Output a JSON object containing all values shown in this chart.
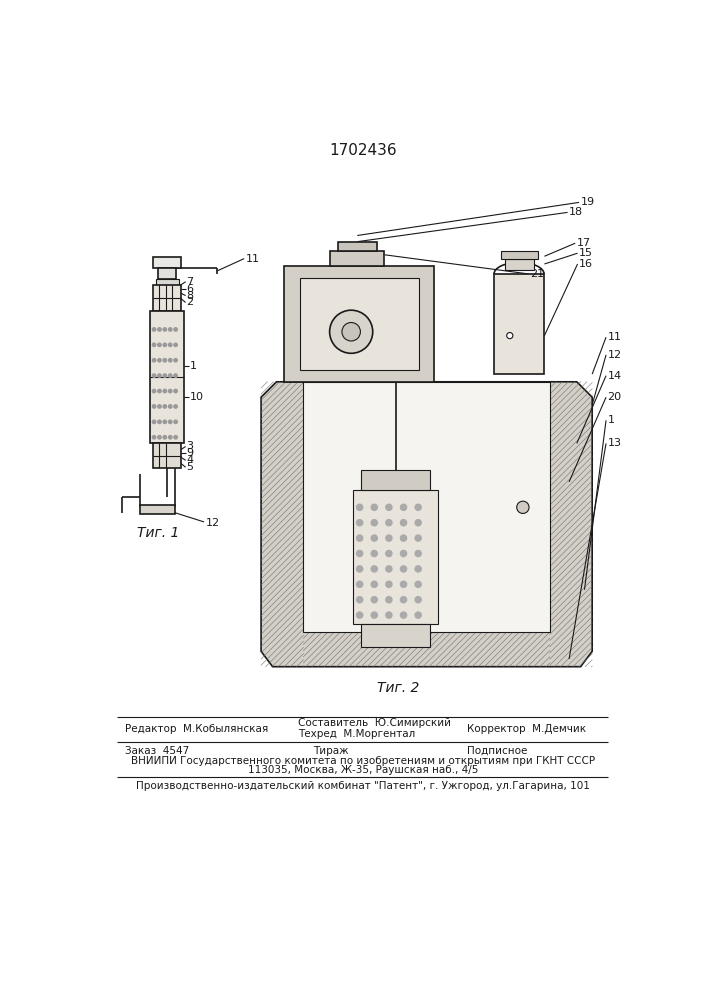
{
  "patent_number": "1702436",
  "bg_color": "#ffffff",
  "line_color": "#1a1a1a",
  "fig1_caption": "Τиг. 1",
  "fig2_caption": "Τиг. 2",
  "footer_editor": "Редактор  М.Кобылянская",
  "footer_composer": "Составитель  Ю.Симирский",
  "footer_techred": "Техред  М.Моргентал",
  "footer_corrector": "Корректор  М.Демчик",
  "footer_order": "Заказ  4547",
  "footer_tirazh": "Тираж",
  "footer_podpisnoe": "Подписное",
  "footer_vniipи": "ВНИИПИ Государственного комитета по изобретениям и открытиям при ГКНТ СССР",
  "footer_address": "113035, Москва, Ж-35, Раушская наб., 4/5",
  "footer_patent": "Производственно-издательский комбинат \"Патент\", г. Ужгород, ул.Гагарина, 101"
}
